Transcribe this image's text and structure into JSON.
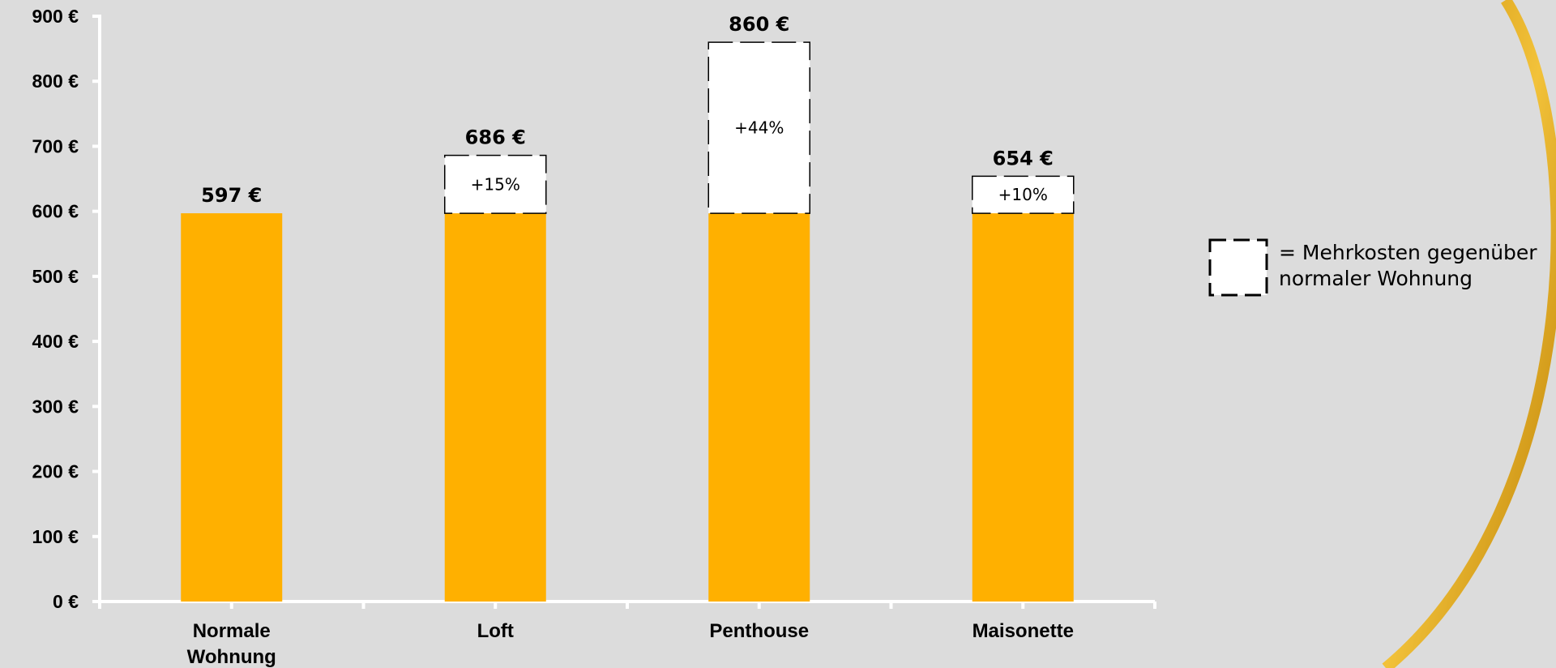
{
  "chart_data": {
    "type": "bar",
    "categories": [
      [
        "Normale",
        "Wohnung"
      ],
      [
        "Loft"
      ],
      [
        "Penthouse"
      ],
      [
        "Maisonette"
      ]
    ],
    "base_value": 597,
    "values": [
      597,
      686,
      860,
      654
    ],
    "value_labels": [
      "597 €",
      "686 €",
      "860 €",
      "654 €"
    ],
    "extra_labels": [
      "",
      "+15%",
      "+44%",
      "+10%"
    ],
    "ylim": [
      0,
      900
    ],
    "yticks": [
      0,
      100,
      200,
      300,
      400,
      500,
      600,
      700,
      800,
      900
    ],
    "ytick_labels": [
      "0 €",
      "100 €",
      "200 €",
      "300 €",
      "400 €",
      "500 €",
      "600 €",
      "700 €",
      "800 €",
      "900 €"
    ],
    "legend": {
      "lines": [
        "= Mehrkosten gegenüber",
        "normaler Wohnung"
      ],
      "placement": "right"
    },
    "colors": {
      "base_bar": "#ffb000",
      "extra_bar": "#ffffff",
      "background": "#dcdcdc",
      "axis": "#ffffff",
      "ring": "#e3a614"
    },
    "grid": false
  }
}
